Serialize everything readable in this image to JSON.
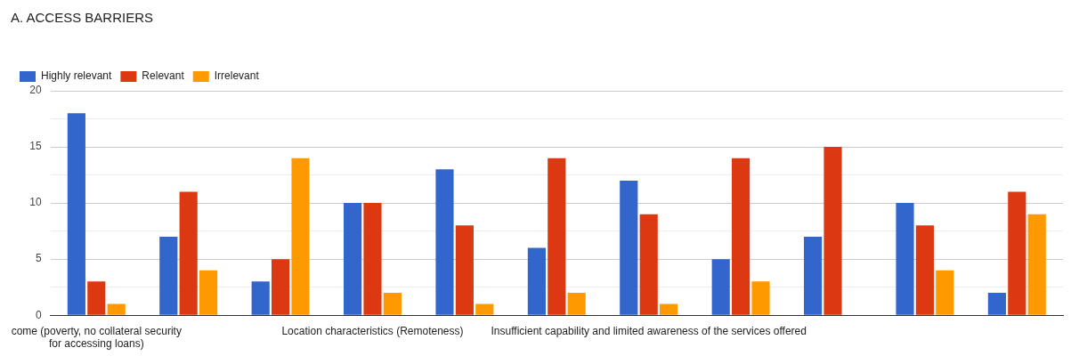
{
  "chart_data": {
    "type": "bar",
    "title": "A. ACCESS BARRIERS",
    "categories": [
      "come (poverty, no collateral security for accessing loans)",
      null,
      null,
      "Location characteristics (Remoteness)",
      null,
      null,
      "Insufficient capability and limited awareness of the services offered",
      null,
      null,
      null,
      null
    ],
    "series": [
      {
        "name": "Highly relevant",
        "color": "#3366cc",
        "values": [
          18,
          7,
          3,
          10,
          13,
          6,
          12,
          5,
          7,
          10,
          2
        ]
      },
      {
        "name": "Relevant",
        "color": "#dc3912",
        "values": [
          3,
          11,
          5,
          10,
          8,
          14,
          9,
          14,
          15,
          8,
          11
        ]
      },
      {
        "name": "Irrelevant",
        "color": "#ff9900",
        "values": [
          1,
          4,
          14,
          2,
          1,
          2,
          1,
          3,
          0,
          4,
          9
        ]
      }
    ],
    "ylim": [
      0,
      20
    ],
    "yticks": [
      0,
      {
        "value": 2.5,
        "label": null
      },
      5,
      {
        "value": 7.5,
        "label": null
      },
      10,
      {
        "value": 12.5,
        "label": null
      },
      15,
      {
        "value": 17.5,
        "label": null
      },
      20
    ],
    "grid": "y",
    "legend": "top left"
  }
}
